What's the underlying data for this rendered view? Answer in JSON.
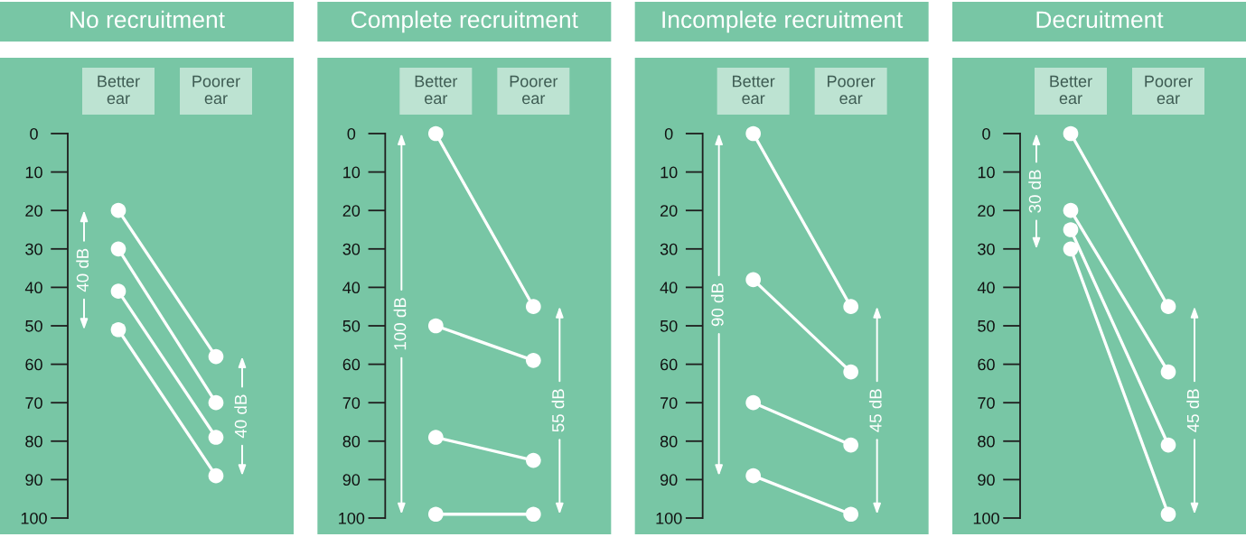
{
  "chart_data": [
    {
      "type": "line",
      "title": "No recruitment",
      "categories": [
        "Better\near",
        "Poorer\near"
      ],
      "series": [
        {
          "color": "#ffffff",
          "values": [
            20,
            58
          ]
        },
        {
          "color": "#ffffff",
          "values": [
            30,
            70
          ]
        },
        {
          "color": "#ffffff",
          "values": [
            41,
            79
          ]
        },
        {
          "color": "#ffffff",
          "values": [
            51,
            89
          ]
        }
      ],
      "ylim": [
        100,
        0
      ],
      "yticks": [
        0,
        10,
        20,
        30,
        40,
        50,
        60,
        70,
        80,
        90,
        100
      ],
      "marker": "circle",
      "annotations": [
        "40 dB",
        "40 dB"
      ]
    },
    {
      "type": "line",
      "title": "Complete recruitment",
      "categories": [
        "Better\near",
        "Poorer\near"
      ],
      "series": [
        {
          "color": "#ffffff",
          "values": [
            0,
            45
          ]
        },
        {
          "color": "#ffffff",
          "values": [
            50,
            59
          ]
        },
        {
          "color": "#ffffff",
          "values": [
            79,
            85
          ]
        },
        {
          "color": "#ffffff",
          "values": [
            99,
            99
          ]
        }
      ],
      "ylim": [
        100,
        0
      ],
      "yticks": [
        0,
        10,
        20,
        30,
        40,
        50,
        60,
        70,
        80,
        90,
        100
      ],
      "marker": "circle",
      "annotations": [
        "100 dB",
        "55 dB"
      ]
    },
    {
      "type": "line",
      "title": "Incomplete recruitment",
      "categories": [
        "Better\near",
        "Poorer\near"
      ],
      "series": [
        {
          "color": "#ffffff",
          "values": [
            0,
            45
          ]
        },
        {
          "color": "#ffffff",
          "values": [
            38,
            62
          ]
        },
        {
          "color": "#ffffff",
          "values": [
            70,
            81
          ]
        },
        {
          "color": "#ffffff",
          "values": [
            89,
            99
          ]
        }
      ],
      "ylim": [
        100,
        0
      ],
      "yticks": [
        0,
        10,
        20,
        30,
        40,
        50,
        60,
        70,
        80,
        90,
        100
      ],
      "marker": "circle",
      "annotations": [
        "90 dB",
        "45 dB"
      ]
    },
    {
      "type": "line",
      "title": "Decruitment",
      "categories": [
        "Better\near",
        "Poorer\near"
      ],
      "series": [
        {
          "color": "#ffffff",
          "values": [
            0,
            45
          ]
        },
        {
          "color": "#ffffff",
          "values": [
            20,
            62
          ]
        },
        {
          "color": "#ffffff",
          "values": [
            25,
            81
          ]
        },
        {
          "color": "#ffffff",
          "values": [
            30,
            99
          ]
        }
      ],
      "ylim": [
        100,
        0
      ],
      "yticks": [
        0,
        10,
        20,
        30,
        40,
        50,
        60,
        70,
        80,
        90,
        100
      ],
      "marker": "circle",
      "annotations": [
        "30 dB",
        "45 dB"
      ]
    }
  ]
}
